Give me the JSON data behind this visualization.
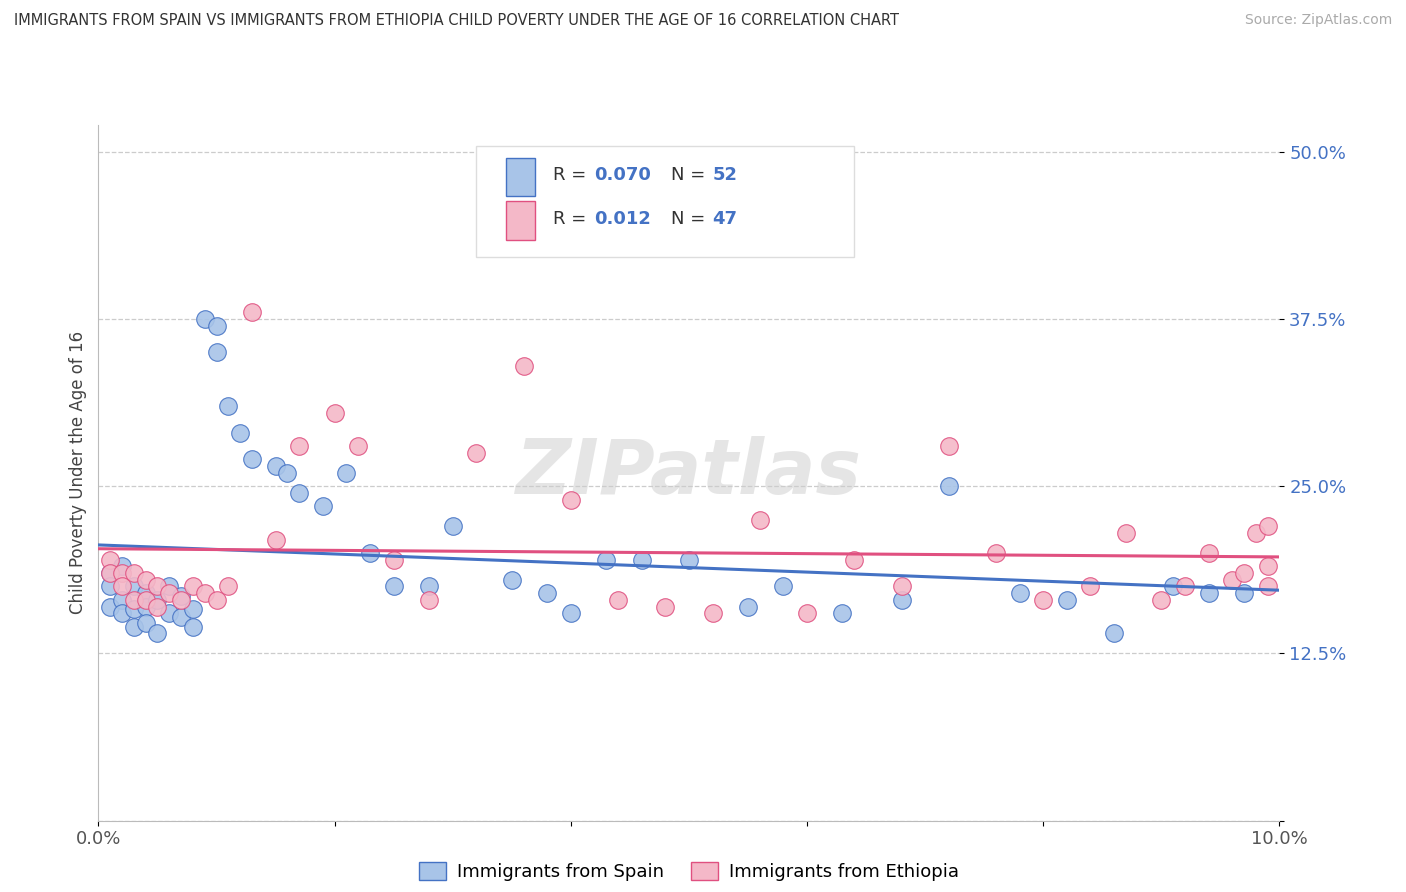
{
  "title": "IMMIGRANTS FROM SPAIN VS IMMIGRANTS FROM ETHIOPIA CHILD POVERTY UNDER THE AGE OF 16 CORRELATION CHART",
  "source": "Source: ZipAtlas.com",
  "ylabel": "Child Poverty Under the Age of 16",
  "xlim": [
    0.0,
    0.1
  ],
  "ylim": [
    0.0,
    0.52
  ],
  "xticks": [
    0.0,
    0.02,
    0.04,
    0.06,
    0.08,
    0.1
  ],
  "xticklabels": [
    "0.0%",
    "",
    "",
    "",
    "",
    "10.0%"
  ],
  "yticks": [
    0.0,
    0.125,
    0.25,
    0.375,
    0.5
  ],
  "yticklabels": [
    "",
    "12.5%",
    "25.0%",
    "37.5%",
    "50.0%"
  ],
  "legend_spain": "Immigrants from Spain",
  "legend_ethiopia": "Immigrants from Ethiopia",
  "r_spain": 0.07,
  "n_spain": 52,
  "r_ethiopia": 0.012,
  "n_ethiopia": 47,
  "color_spain": "#a8c4e8",
  "color_ethiopia": "#f4b8c8",
  "trendline_spain_color": "#4472c4",
  "trendline_ethiopia_color": "#e05080",
  "watermark": "ZIPatlas",
  "spain_x": [
    0.001,
    0.001,
    0.001,
    0.002,
    0.002,
    0.002,
    0.003,
    0.003,
    0.003,
    0.004,
    0.004,
    0.004,
    0.005,
    0.005,
    0.006,
    0.006,
    0.007,
    0.007,
    0.008,
    0.008,
    0.009,
    0.01,
    0.01,
    0.011,
    0.012,
    0.013,
    0.015,
    0.016,
    0.017,
    0.019,
    0.021,
    0.023,
    0.025,
    0.028,
    0.03,
    0.035,
    0.038,
    0.04,
    0.043,
    0.046,
    0.05,
    0.055,
    0.058,
    0.063,
    0.068,
    0.072,
    0.078,
    0.082,
    0.086,
    0.091,
    0.094,
    0.097
  ],
  "spain_y": [
    0.185,
    0.175,
    0.16,
    0.19,
    0.165,
    0.155,
    0.175,
    0.158,
    0.145,
    0.17,
    0.16,
    0.148,
    0.165,
    0.14,
    0.175,
    0.155,
    0.168,
    0.152,
    0.158,
    0.145,
    0.375,
    0.37,
    0.35,
    0.31,
    0.29,
    0.27,
    0.265,
    0.26,
    0.245,
    0.235,
    0.26,
    0.2,
    0.175,
    0.175,
    0.22,
    0.18,
    0.17,
    0.155,
    0.195,
    0.195,
    0.195,
    0.16,
    0.175,
    0.155,
    0.165,
    0.25,
    0.17,
    0.165,
    0.14,
    0.175,
    0.17,
    0.17
  ],
  "ethiopia_x": [
    0.001,
    0.001,
    0.002,
    0.002,
    0.003,
    0.003,
    0.004,
    0.004,
    0.005,
    0.005,
    0.006,
    0.007,
    0.008,
    0.009,
    0.01,
    0.011,
    0.013,
    0.015,
    0.017,
    0.02,
    0.022,
    0.025,
    0.028,
    0.032,
    0.036,
    0.04,
    0.044,
    0.048,
    0.052,
    0.056,
    0.06,
    0.064,
    0.068,
    0.072,
    0.076,
    0.08,
    0.084,
    0.087,
    0.09,
    0.092,
    0.094,
    0.096,
    0.097,
    0.098,
    0.099,
    0.099,
    0.099
  ],
  "ethiopia_y": [
    0.195,
    0.185,
    0.185,
    0.175,
    0.185,
    0.165,
    0.18,
    0.165,
    0.175,
    0.16,
    0.17,
    0.165,
    0.175,
    0.17,
    0.165,
    0.175,
    0.38,
    0.21,
    0.28,
    0.305,
    0.28,
    0.195,
    0.165,
    0.275,
    0.34,
    0.24,
    0.165,
    0.16,
    0.155,
    0.225,
    0.155,
    0.195,
    0.175,
    0.28,
    0.2,
    0.165,
    0.175,
    0.215,
    0.165,
    0.175,
    0.2,
    0.18,
    0.185,
    0.215,
    0.175,
    0.19,
    0.22
  ]
}
